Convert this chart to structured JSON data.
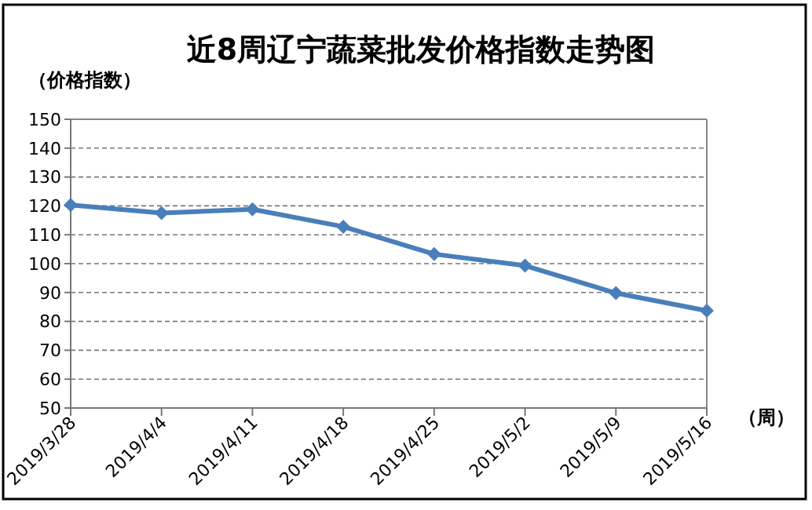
{
  "chart_data": {
    "type": "line",
    "title": "近8周辽宁蔬菜批发价格指数走势图",
    "ylabel": "（价格指数）",
    "xlabel": "（周）",
    "categories": [
      "2019/3/28",
      "2019/4/4",
      "2019/4/11",
      "2019/4/18",
      "2019/4/25",
      "2019/5/2",
      "2019/5/9",
      "2019/5/16"
    ],
    "series": [
      {
        "color": "#4a7ebb",
        "values": [
          120.3,
          117.5,
          118.8,
          112.8,
          103.3,
          99.3,
          89.8,
          83.7
        ]
      }
    ],
    "ylim": [
      50,
      150
    ],
    "yticks": [
      50,
      60,
      70,
      80,
      90,
      100,
      110,
      120,
      130,
      140,
      150
    ],
    "grid": "y",
    "marker": "diamond",
    "line_style": "solid"
  }
}
